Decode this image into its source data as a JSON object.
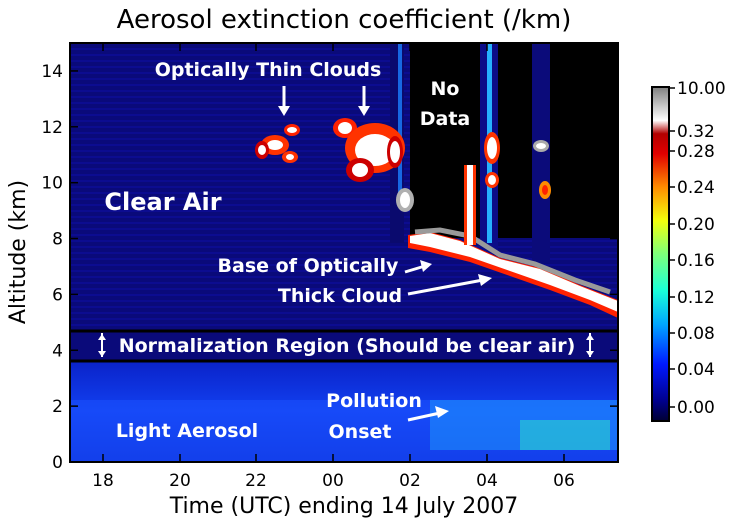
{
  "chart_data": {
    "type": "heatmap",
    "title": "Aerosol extinction coefficient (/km)",
    "xlabel": "Time (UTC) ending 14 July 2007",
    "ylabel": "Altitude (km)",
    "x_ticks": [
      "18",
      "20",
      "22",
      "00",
      "02",
      "04",
      "06"
    ],
    "y_ticks": [
      "0",
      "2",
      "4",
      "6",
      "8",
      "10",
      "12",
      "14"
    ],
    "ylim": [
      0,
      15
    ],
    "colorbar": {
      "label_values": [
        "0.00",
        "0.04",
        "0.08",
        "0.12",
        "0.16",
        "0.20",
        "0.24",
        "0.28",
        "0.32",
        "10.00"
      ],
      "colors": [
        "#000033",
        "#00008c",
        "#0019ff",
        "#00a6ff",
        "#19ffd9",
        "#7dff7a",
        "#f2ff0c",
        "#ff8c00",
        "#e00000",
        "#b20000",
        "#ffffff",
        "#7f7f7f"
      ]
    },
    "annotations": [
      "Optically Thin Clouds",
      "No Data",
      "Clear Air",
      "Base of Optically",
      "Thick Cloud",
      "Normalization Region (Should be clear air)",
      "Pollution",
      "Onset",
      "Light Aerosol"
    ]
  }
}
